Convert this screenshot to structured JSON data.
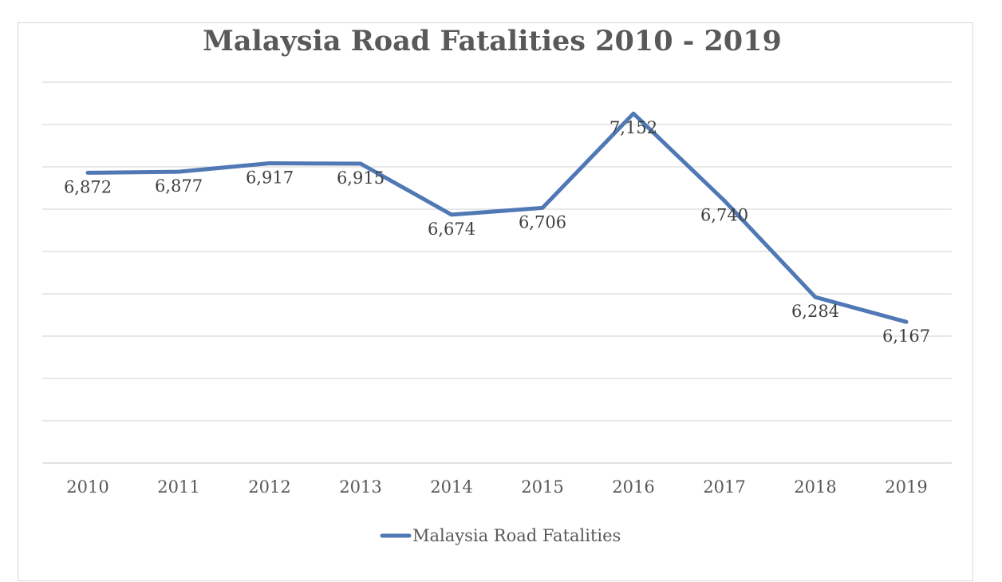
{
  "chart_data": {
    "type": "line",
    "title": "Malaysia Road Fatalities 2010 - 2019",
    "xlabel": "",
    "ylabel": "",
    "categories": [
      "2010",
      "2011",
      "2012",
      "2013",
      "2014",
      "2015",
      "2016",
      "2017",
      "2018",
      "2019"
    ],
    "series": [
      {
        "name": "Malaysia Road Fatalities",
        "values": [
          6872,
          6877,
          6917,
          6915,
          6674,
          6706,
          7152,
          6740,
          6284,
          6167
        ],
        "labels": [
          "6,872",
          "6,877",
          "6,917",
          "6,915",
          "6,674",
          "6,706",
          "7,152",
          "6,740",
          "6,284",
          "6,167"
        ],
        "color": "#4f78b5"
      }
    ],
    "ylim": [
      5500,
      7300
    ],
    "grid": true,
    "y_tick_labels_shown": false,
    "legend_position": "bottom",
    "gridline_color": "#d9d9d9"
  }
}
